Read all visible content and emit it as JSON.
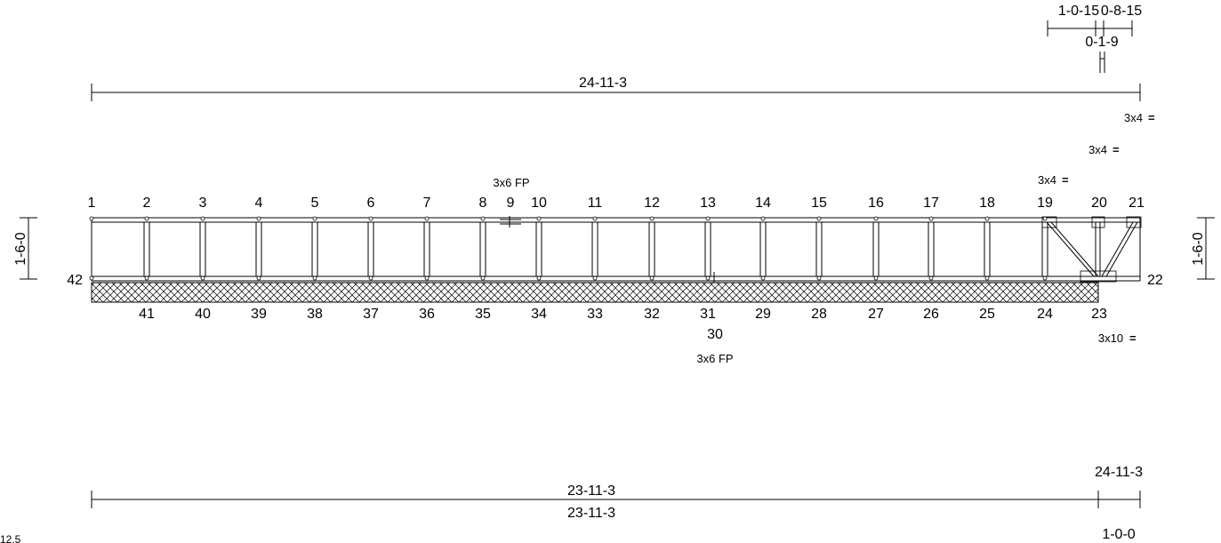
{
  "top_dims": {
    "overall": "24-11-3",
    "seg_a": "1-0-15",
    "seg_b": "0-8-15",
    "seg_c": "0-1-9"
  },
  "bottom_dims": {
    "overall_upper": "23-11-3",
    "overall_lower": "23-11-3",
    "right_upper": "24-11-3",
    "right_lower": "1-0-0"
  },
  "side_dims": {
    "left": "1-6-0",
    "right": "1-6-0"
  },
  "plates": {
    "p1": "3x4",
    "p2": "3x4",
    "p3": "3x4",
    "fp_top": "3x6 FP",
    "bot_right": "3x10",
    "fp_bottom": "3x6 FP"
  },
  "plate_symbol": "=",
  "top_nodes": [
    "1",
    "2",
    "3",
    "4",
    "5",
    "6",
    "7",
    "8",
    "9",
    "10",
    "11",
    "12",
    "13",
    "14",
    "15",
    "16",
    "17",
    "18",
    "19",
    "20",
    "21"
  ],
  "bottom_nodes": [
    "41",
    "40",
    "39",
    "38",
    "37",
    "36",
    "35",
    "34",
    "33",
    "32",
    "31",
    "29",
    "28",
    "27",
    "26",
    "25",
    "24",
    "23"
  ],
  "node_left": "42",
  "node_right": "22",
  "node_30": "30",
  "corner_label": "12.5"
}
